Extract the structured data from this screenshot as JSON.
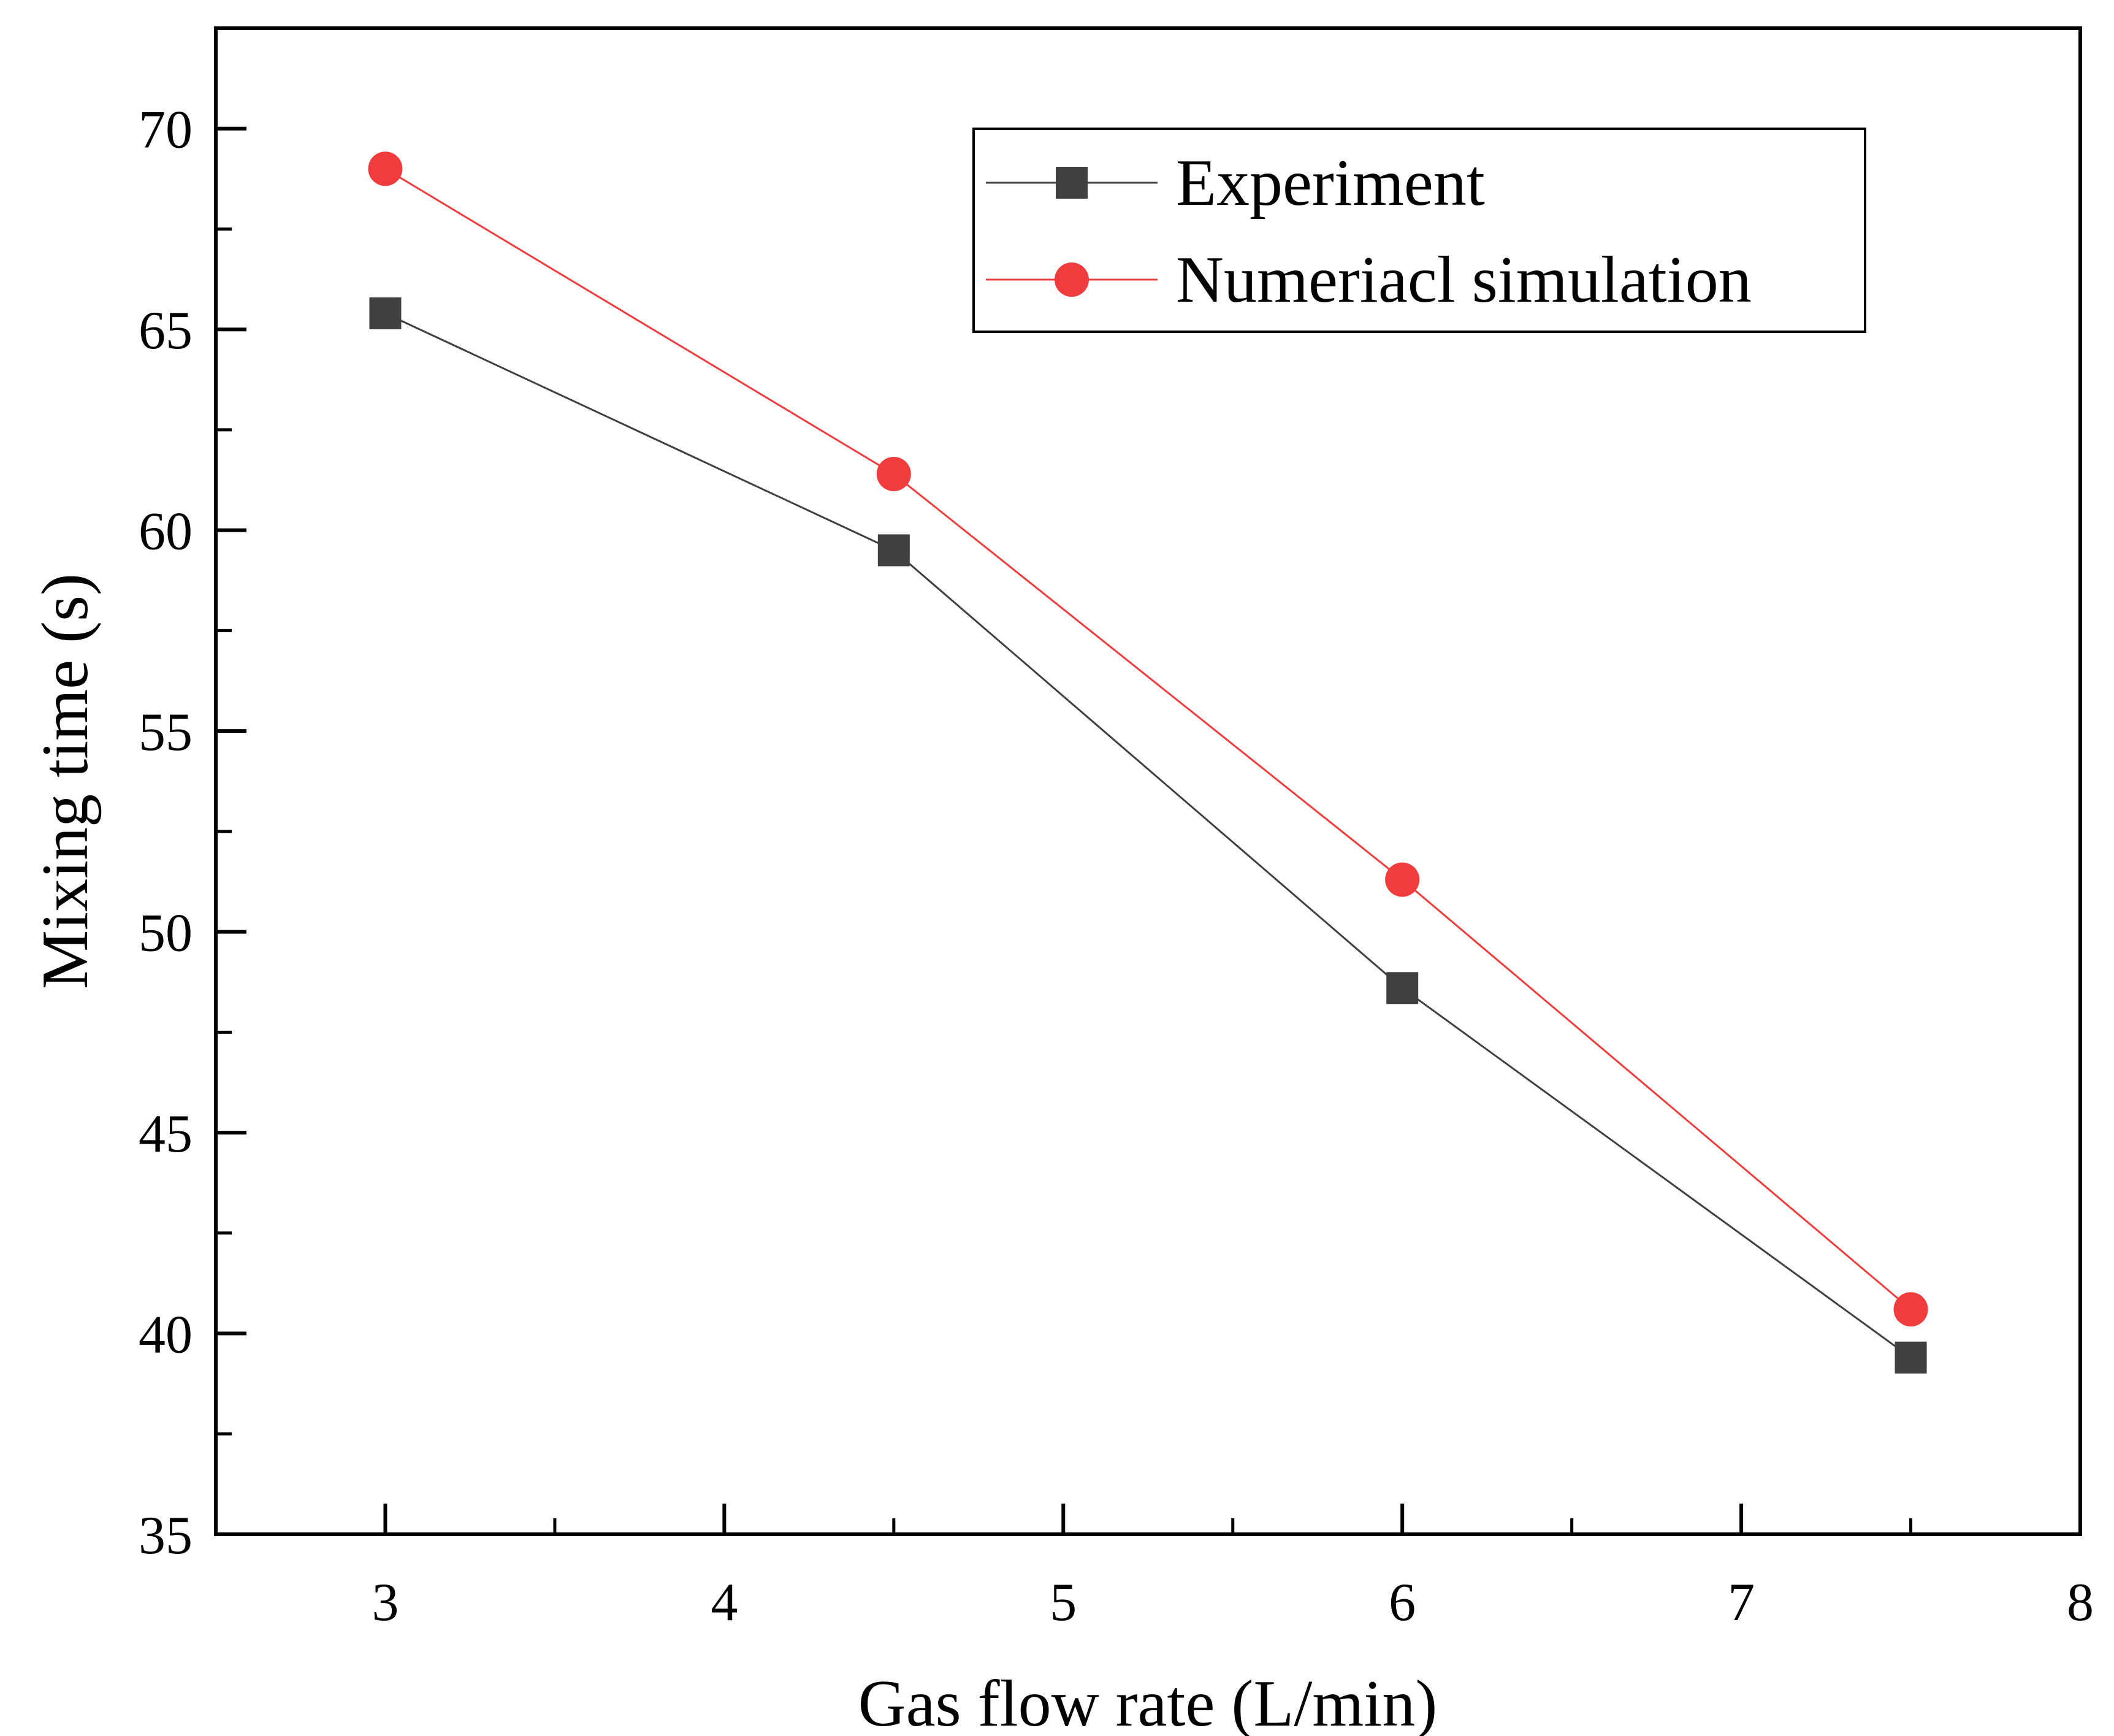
{
  "chart_data": {
    "type": "line",
    "title": "",
    "xlabel": "Gas flow rate (L/min)",
    "ylabel": "Mixing time (s)",
    "xlim": [
      2.5,
      8
    ],
    "ylim": [
      35,
      72.5
    ],
    "xticks": [
      3,
      4,
      5,
      6,
      7,
      8
    ],
    "yticks": [
      35,
      40,
      45,
      50,
      55,
      60,
      65,
      70
    ],
    "xtick_labels": [
      "3",
      "4",
      "5",
      "6",
      "7",
      "8"
    ],
    "ytick_labels": [
      "35",
      "40",
      "45",
      "50",
      "55",
      "60",
      "65",
      "70"
    ],
    "grid": false,
    "legend_position": "top-right",
    "series": [
      {
        "name": "Experiment",
        "marker": "square",
        "color": "#404040",
        "x": [
          3,
          4.5,
          6,
          7.5
        ],
        "y": [
          65.4,
          59.5,
          48.6,
          39.4
        ]
      },
      {
        "name": "Numeriacl simulation",
        "marker": "circle",
        "color": "#f03c3c",
        "x": [
          3,
          4.5,
          6,
          7.5
        ],
        "y": [
          69.0,
          61.4,
          51.3,
          40.6
        ]
      }
    ]
  }
}
